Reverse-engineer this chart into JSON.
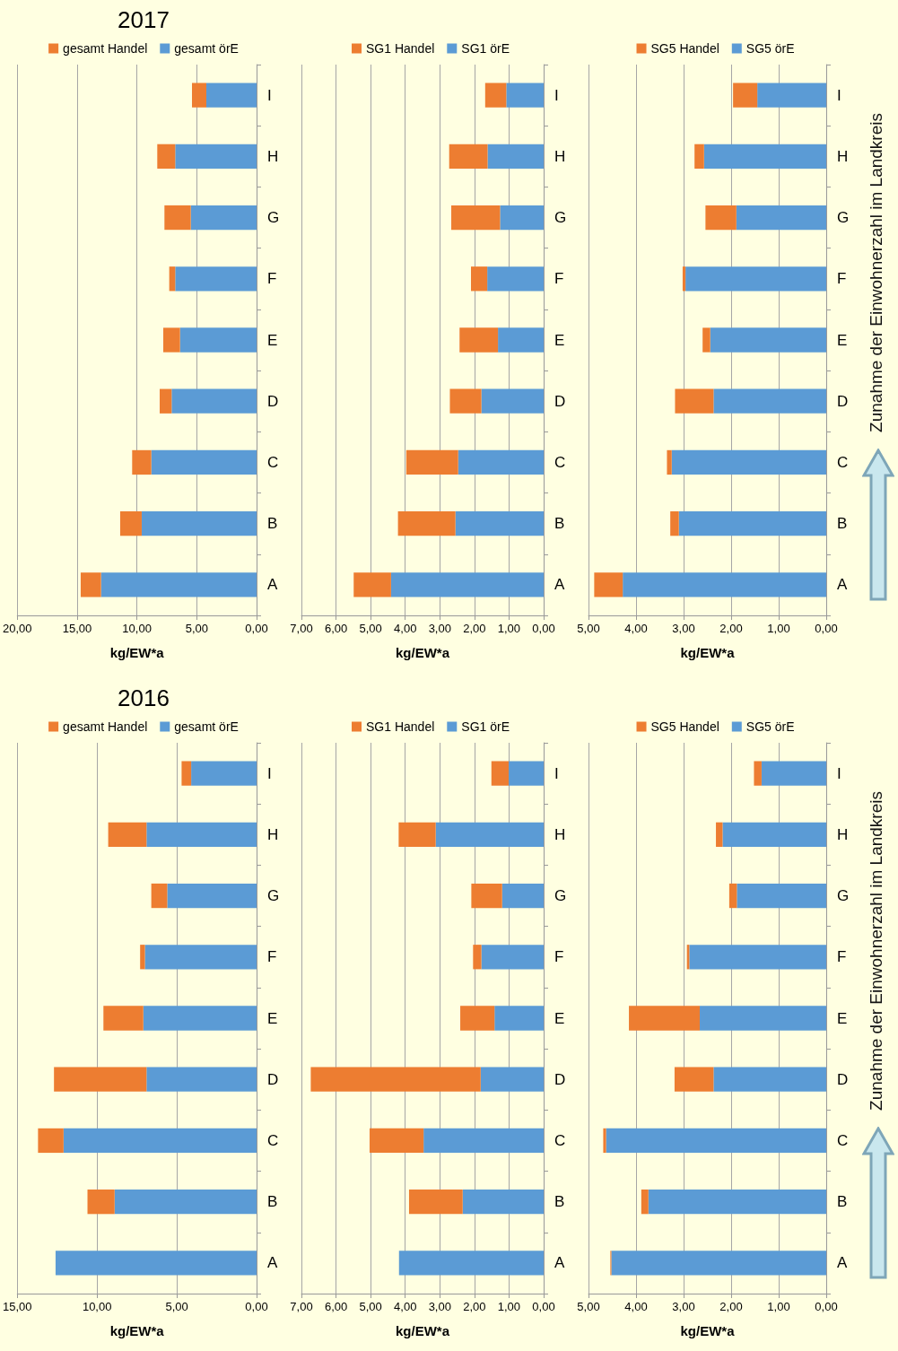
{
  "chart_data": [
    {
      "type": "bar",
      "orientation": "horizontal",
      "title": "2017",
      "xlabel": "kg/EW*a",
      "categories": [
        "I",
        "H",
        "G",
        "F",
        "E",
        "D",
        "C",
        "B",
        "A"
      ],
      "stacked": true,
      "xlim": [
        20,
        0
      ],
      "xticks": [
        {
          "value": 20,
          "label": "20,00"
        },
        {
          "value": 15,
          "label": "15,00"
        },
        {
          "value": 10,
          "label": "10,00"
        },
        {
          "value": 5,
          "label": "5,00"
        },
        {
          "value": 0,
          "label": "0,00"
        }
      ],
      "grid": "x",
      "legend": "top",
      "series": [
        {
          "name": "gesamt örE",
          "color": "#5b9bd5",
          "values": [
            4.2,
            6.8,
            5.5,
            6.8,
            6.4,
            7.1,
            8.8,
            9.6,
            13.0
          ]
        },
        {
          "name": "gesamt Handel",
          "color": "#ed7d31",
          "values": [
            1.2,
            1.5,
            2.2,
            0.5,
            1.4,
            1.0,
            1.6,
            1.8,
            1.7
          ]
        }
      ]
    },
    {
      "type": "bar",
      "orientation": "horizontal",
      "xlabel": "kg/EW*a",
      "categories": [
        "I",
        "H",
        "G",
        "F",
        "E",
        "D",
        "C",
        "B",
        "A"
      ],
      "stacked": true,
      "xlim": [
        7,
        0
      ],
      "xticks": [
        {
          "value": 7,
          "label": "7,00"
        },
        {
          "value": 6,
          "label": "6,00"
        },
        {
          "value": 5,
          "label": "5,00"
        },
        {
          "value": 4,
          "label": "4,00"
        },
        {
          "value": 3,
          "label": "3,00"
        },
        {
          "value": 2,
          "label": "2,00"
        },
        {
          "value": 1,
          "label": "1,00"
        },
        {
          "value": 0,
          "label": "0,00"
        }
      ],
      "grid": "x",
      "legend": "top",
      "series": [
        {
          "name": "SG1 örE",
          "color": "#5b9bd5",
          "values": [
            1.08,
            1.62,
            1.26,
            1.63,
            1.32,
            1.8,
            2.47,
            2.55,
            4.41
          ]
        },
        {
          "name": "SG1 Handel",
          "color": "#ed7d31",
          "values": [
            0.61,
            1.11,
            1.41,
            0.47,
            1.11,
            0.91,
            1.5,
            1.66,
            1.08
          ]
        }
      ]
    },
    {
      "type": "bar",
      "orientation": "horizontal",
      "xlabel": "kg/EW*a",
      "categories": [
        "I",
        "H",
        "G",
        "F",
        "E",
        "D",
        "C",
        "B",
        "A"
      ],
      "stacked": true,
      "xlim": [
        5,
        0
      ],
      "xticks": [
        {
          "value": 5,
          "label": "5,00"
        },
        {
          "value": 4,
          "label": "4,00"
        },
        {
          "value": 3,
          "label": "3,00"
        },
        {
          "value": 2,
          "label": "2,00"
        },
        {
          "value": 1,
          "label": "1,00"
        },
        {
          "value": 0,
          "label": "0,00"
        }
      ],
      "grid": "x",
      "legend": "top",
      "annotations": [
        "Zunahme der Einwohnerzahl im Landkreis"
      ],
      "series": [
        {
          "name": "SG5 örE",
          "color": "#5b9bd5",
          "values": [
            1.45,
            2.57,
            1.89,
            2.96,
            2.44,
            2.37,
            3.25,
            3.1,
            4.28
          ]
        },
        {
          "name": "SG5 Handel",
          "color": "#ed7d31",
          "values": [
            0.51,
            0.2,
            0.65,
            0.06,
            0.16,
            0.81,
            0.1,
            0.18,
            0.6
          ]
        }
      ]
    },
    {
      "type": "bar",
      "orientation": "horizontal",
      "title": "2016",
      "xlabel": "kg/EW*a",
      "categories": [
        "I",
        "H",
        "G",
        "F",
        "E",
        "D",
        "C",
        "B",
        "A"
      ],
      "stacked": true,
      "xlim": [
        15,
        0
      ],
      "xticks": [
        {
          "value": 15,
          "label": "15,00"
        },
        {
          "value": 10,
          "label": "10,00"
        },
        {
          "value": 5,
          "label": "5,00"
        },
        {
          "value": 0,
          "label": "0,00"
        }
      ],
      "grid": "x",
      "legend": "top",
      "series": [
        {
          "name": "gesamt örE",
          "color": "#5b9bd5",
          "values": [
            4.1,
            6.9,
            5.6,
            7.0,
            7.1,
            6.9,
            12.1,
            8.9,
            12.6
          ]
        },
        {
          "name": "gesamt Handel",
          "color": "#ed7d31",
          "values": [
            0.6,
            2.4,
            1.0,
            0.3,
            2.5,
            5.8,
            1.6,
            1.7,
            0
          ]
        }
      ]
    },
    {
      "type": "bar",
      "orientation": "horizontal",
      "xlabel": "kg/EW*a",
      "categories": [
        "I",
        "H",
        "G",
        "F",
        "E",
        "D",
        "C",
        "B",
        "A"
      ],
      "stacked": true,
      "xlim": [
        7,
        0
      ],
      "xticks": [
        {
          "value": 7,
          "label": "7,00"
        },
        {
          "value": 6,
          "label": "6,00"
        },
        {
          "value": 5,
          "label": "5,00"
        },
        {
          "value": 4,
          "label": "4,00"
        },
        {
          "value": 3,
          "label": "3,00"
        },
        {
          "value": 2,
          "label": "2,00"
        },
        {
          "value": 1,
          "label": "1,00"
        },
        {
          "value": 0,
          "label": "0,00"
        }
      ],
      "grid": "x",
      "legend": "top",
      "series": [
        {
          "name": "SG1 örE",
          "color": "#5b9bd5",
          "values": [
            1.01,
            3.12,
            1.2,
            1.8,
            1.42,
            1.82,
            3.47,
            2.34,
            4.18
          ]
        },
        {
          "name": "SG1 Handel",
          "color": "#ed7d31",
          "values": [
            0.5,
            1.07,
            0.89,
            0.24,
            0.99,
            4.91,
            1.56,
            1.55,
            0
          ]
        }
      ]
    },
    {
      "type": "bar",
      "orientation": "horizontal",
      "xlabel": "kg/EW*a",
      "categories": [
        "I",
        "H",
        "G",
        "F",
        "E",
        "D",
        "C",
        "B",
        "A"
      ],
      "stacked": true,
      "xlim": [
        5,
        0
      ],
      "xticks": [
        {
          "value": 5,
          "label": "5,00"
        },
        {
          "value": 4,
          "label": "4,00"
        },
        {
          "value": 3,
          "label": "3,00"
        },
        {
          "value": 2,
          "label": "2,00"
        },
        {
          "value": 1,
          "label": "1,00"
        },
        {
          "value": 0,
          "label": "0,00"
        }
      ],
      "grid": "x",
      "legend": "top",
      "annotations": [
        "Zunahme der Einwohnerzahl im Landkreis"
      ],
      "series": [
        {
          "name": "SG5 örE",
          "color": "#5b9bd5",
          "values": [
            1.36,
            2.18,
            1.88,
            2.88,
            2.66,
            2.37,
            4.63,
            3.74,
            4.52
          ]
        },
        {
          "name": "SG5 Handel",
          "color": "#ed7d31",
          "values": [
            0.16,
            0.14,
            0.16,
            0.05,
            1.49,
            0.82,
            0.06,
            0.15,
            0.02
          ]
        }
      ]
    }
  ]
}
